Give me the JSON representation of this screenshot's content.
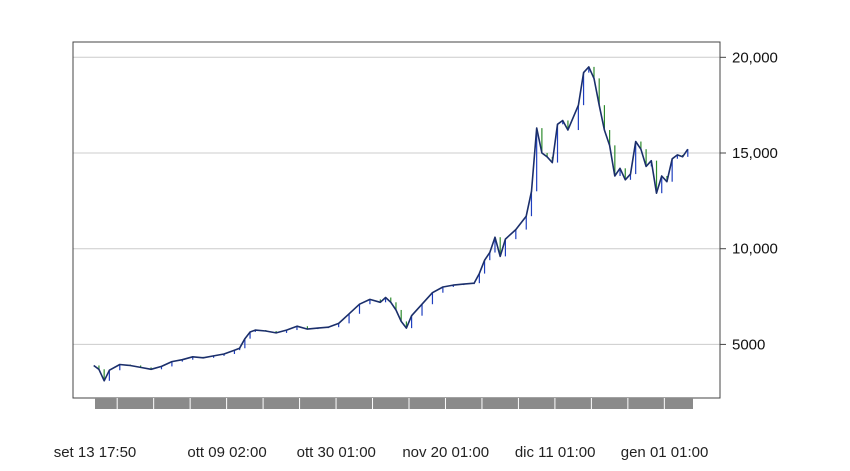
{
  "chart_data": {
    "type": "line",
    "subtype": "candlestick-price-series",
    "title": "",
    "xlabel": "",
    "ylabel": "",
    "ylim": [
      2200,
      20800
    ],
    "grid": "horizontal",
    "y_axis_side": "right",
    "y_ticks": [
      {
        "value": 5000,
        "label": "5000"
      },
      {
        "value": 10000,
        "label": "10,000"
      },
      {
        "value": 15000,
        "label": "15,000"
      },
      {
        "value": 20000,
        "label": "20,000"
      }
    ],
    "x_ticks": [
      {
        "date": "2017-09-13 17:50",
        "label": "set 13 17:50"
      },
      {
        "date": "2017-10-09 02:00",
        "label": "ott 09 02:00"
      },
      {
        "date": "2017-10-30 01:00",
        "label": "ott 30 01:00"
      },
      {
        "date": "2017-11-20 01:00",
        "label": "nov 20 01:00"
      },
      {
        "date": "2017-12-11 01:00",
        "label": "dic 11 01:00"
      },
      {
        "date": "2018-01-01 01:00",
        "label": "gen 01 01:00"
      }
    ],
    "x_range": [
      "2017-09-13 17:50",
      "2018-01-06 12:00"
    ],
    "colors": {
      "line": "#1b2f6b",
      "up": "#1f3fbf",
      "down": "#2e8b2e",
      "grid": "#cccccc",
      "axis_bar": "#8a8a8a"
    },
    "series": [
      {
        "points": [
          [
            "2017-09-13",
            3900
          ],
          [
            "2017-09-14",
            3700
          ],
          [
            "2017-09-15",
            3100
          ],
          [
            "2017-09-16",
            3650
          ],
          [
            "2017-09-18",
            3950
          ],
          [
            "2017-09-20",
            3900
          ],
          [
            "2017-09-22",
            3800
          ],
          [
            "2017-09-24",
            3700
          ],
          [
            "2017-09-26",
            3850
          ],
          [
            "2017-09-28",
            4100
          ],
          [
            "2017-09-30",
            4200
          ],
          [
            "2017-10-02",
            4350
          ],
          [
            "2017-10-04",
            4300
          ],
          [
            "2017-10-06",
            4400
          ],
          [
            "2017-10-08",
            4500
          ],
          [
            "2017-10-10",
            4700
          ],
          [
            "2017-10-11",
            4800
          ],
          [
            "2017-10-12",
            5300
          ],
          [
            "2017-10-13",
            5650
          ],
          [
            "2017-10-14",
            5750
          ],
          [
            "2017-10-16",
            5700
          ],
          [
            "2017-10-18",
            5600
          ],
          [
            "2017-10-20",
            5750
          ],
          [
            "2017-10-22",
            5950
          ],
          [
            "2017-10-24",
            5800
          ],
          [
            "2017-10-26",
            5850
          ],
          [
            "2017-10-28",
            5900
          ],
          [
            "2017-10-30",
            6100
          ],
          [
            "2017-11-01",
            6600
          ],
          [
            "2017-11-03",
            7100
          ],
          [
            "2017-11-05",
            7350
          ],
          [
            "2017-11-07",
            7200
          ],
          [
            "2017-11-08",
            7450
          ],
          [
            "2017-11-09",
            7200
          ],
          [
            "2017-11-10",
            6800
          ],
          [
            "2017-11-11",
            6200
          ],
          [
            "2017-11-12",
            5850
          ],
          [
            "2017-11-13",
            6500
          ],
          [
            "2017-11-15",
            7100
          ],
          [
            "2017-11-17",
            7700
          ],
          [
            "2017-11-19",
            8000
          ],
          [
            "2017-11-21",
            8100
          ],
          [
            "2017-11-23",
            8150
          ],
          [
            "2017-11-25",
            8200
          ],
          [
            "2017-11-26",
            8700
          ],
          [
            "2017-11-27",
            9400
          ],
          [
            "2017-11-28",
            9800
          ],
          [
            "2017-11-29",
            10600
          ],
          [
            "2017-11-30",
            9600
          ],
          [
            "2017-12-01",
            10500
          ],
          [
            "2017-12-03",
            11000
          ],
          [
            "2017-12-05",
            11700
          ],
          [
            "2017-12-06",
            13000
          ],
          [
            "2017-12-07",
            16300
          ],
          [
            "2017-12-08",
            15000
          ],
          [
            "2017-12-09",
            14800
          ],
          [
            "2017-12-10",
            14500
          ],
          [
            "2017-12-11",
            16500
          ],
          [
            "2017-12-12",
            16700
          ],
          [
            "2017-12-13",
            16200
          ],
          [
            "2017-12-15",
            17500
          ],
          [
            "2017-12-16",
            19200
          ],
          [
            "2017-12-17",
            19500
          ],
          [
            "2017-12-18",
            18900
          ],
          [
            "2017-12-19",
            17500
          ],
          [
            "2017-12-20",
            16200
          ],
          [
            "2017-12-21",
            15400
          ],
          [
            "2017-12-22",
            13800
          ],
          [
            "2017-12-23",
            14200
          ],
          [
            "2017-12-24",
            13600
          ],
          [
            "2017-12-25",
            13900
          ],
          [
            "2017-12-26",
            15600
          ],
          [
            "2017-12-27",
            15200
          ],
          [
            "2017-12-28",
            14300
          ],
          [
            "2017-12-29",
            14600
          ],
          [
            "2017-12-30",
            12900
          ],
          [
            "2017-12-31",
            13800
          ],
          [
            "2018-01-01",
            13500
          ],
          [
            "2018-01-02",
            14700
          ],
          [
            "2018-01-03",
            14900
          ],
          [
            "2018-01-04",
            14800
          ],
          [
            "2018-01-05",
            15200
          ]
        ]
      }
    ]
  }
}
